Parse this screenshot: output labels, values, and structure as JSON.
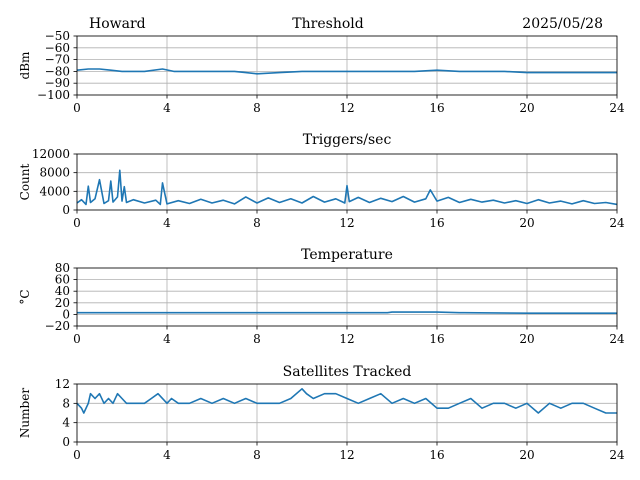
{
  "header": {
    "left": "Howard",
    "right": "2025/05/28"
  },
  "colors": {
    "line": "#1f77b4",
    "grid": "#b0b0b0",
    "axis": "#000000"
  },
  "chart_data": [
    {
      "type": "line",
      "title": "Threshold",
      "xlabel": "",
      "ylabel": "dBm",
      "xlim": [
        0,
        24
      ],
      "ylim": [
        -100,
        -50
      ],
      "grid": true,
      "x_ticks": [
        "0",
        "4",
        "8",
        "12",
        "16",
        "20",
        "24"
      ],
      "y_ticks": [
        "−50",
        "−60",
        "−70",
        "−80",
        "−90",
        "−100"
      ],
      "series": [
        {
          "x": [
            0,
            0.5,
            1,
            1.5,
            2,
            3,
            3.8,
            4.3,
            5,
            6,
            7,
            7.5,
            8,
            9,
            10,
            11,
            12,
            13,
            14,
            15,
            16,
            17,
            18,
            19,
            20,
            21,
            22,
            23,
            24
          ],
          "values": [
            -79,
            -78,
            -78,
            -79,
            -80,
            -80,
            -78,
            -80,
            -80,
            -80,
            -80,
            -81,
            -82,
            -81,
            -80,
            -80,
            -80,
            -80,
            -80,
            -80,
            -79,
            -80,
            -80,
            -80,
            -81,
            -81,
            -81,
            -81,
            -81
          ]
        }
      ]
    },
    {
      "type": "line",
      "title": "Triggers/sec",
      "xlabel": "",
      "ylabel": "Count",
      "xlim": [
        0,
        24
      ],
      "ylim": [
        0,
        12000
      ],
      "grid": true,
      "x_ticks": [
        "0",
        "4",
        "8",
        "12",
        "16",
        "20",
        "24"
      ],
      "y_ticks": [
        "12000",
        "8000",
        "4000",
        "0"
      ],
      "series": [
        {
          "x": [
            0,
            0.2,
            0.4,
            0.5,
            0.6,
            0.8,
            1.0,
            1.2,
            1.4,
            1.5,
            1.6,
            1.8,
            1.9,
            2.0,
            2.1,
            2.2,
            2.5,
            3.0,
            3.5,
            3.7,
            3.8,
            4.0,
            4.5,
            5.0,
            5.5,
            6.0,
            6.5,
            7.0,
            7.5,
            8.0,
            8.5,
            9.0,
            9.5,
            10.0,
            10.5,
            11.0,
            11.5,
            11.9,
            12.0,
            12.1,
            12.5,
            13.0,
            13.5,
            14.0,
            14.5,
            15.0,
            15.5,
            15.7,
            16.0,
            16.5,
            17.0,
            17.5,
            18.0,
            18.5,
            19.0,
            19.5,
            20.0,
            20.5,
            21.0,
            21.5,
            22.0,
            22.5,
            23.0,
            23.5,
            24.0
          ],
          "values": [
            1500,
            2200,
            1200,
            5100,
            1600,
            2400,
            6500,
            1400,
            2000,
            6200,
            1700,
            2800,
            8500,
            1900,
            5000,
            1600,
            2200,
            1500,
            2100,
            1200,
            5800,
            1300,
            2000,
            1400,
            2300,
            1500,
            2100,
            1300,
            2800,
            1500,
            2600,
            1600,
            2400,
            1500,
            2900,
            1700,
            2400,
            1500,
            5200,
            1800,
            2700,
            1600,
            2500,
            1800,
            2900,
            1700,
            2400,
            4300,
            1900,
            2700,
            1600,
            2300,
            1700,
            2100,
            1500,
            2000,
            1400,
            2200,
            1500,
            1900,
            1300,
            2000,
            1400,
            1600,
            1200
          ]
        }
      ]
    },
    {
      "type": "line",
      "title": "Temperature",
      "xlabel": "",
      "ylabel": "°C",
      "xlim": [
        0,
        24
      ],
      "ylim": [
        -20,
        80
      ],
      "grid": true,
      "x_ticks": [
        "0",
        "4",
        "8",
        "12",
        "16",
        "20",
        "24"
      ],
      "y_ticks": [
        "80",
        "60",
        "40",
        "20",
        "0",
        "−20"
      ],
      "series": [
        {
          "x": [
            0,
            4,
            8,
            12,
            13.8,
            14,
            15,
            16,
            17,
            17.2,
            20,
            24
          ],
          "values": [
            3,
            3,
            3,
            3,
            3,
            4,
            4,
            4,
            3,
            3,
            2,
            2
          ]
        }
      ]
    },
    {
      "type": "line",
      "title": "Satellites Tracked",
      "xlabel": "",
      "ylabel": "Number",
      "xlim": [
        0,
        24
      ],
      "ylim": [
        0,
        12
      ],
      "grid": true,
      "x_ticks": [
        "0",
        "4",
        "8",
        "12",
        "16",
        "20",
        "24"
      ],
      "y_ticks": [
        "12",
        "8",
        "4",
        "0"
      ],
      "series": [
        {
          "x": [
            0,
            0.2,
            0.3,
            0.5,
            0.6,
            0.8,
            1.0,
            1.2,
            1.4,
            1.6,
            1.8,
            2.0,
            2.2,
            2.5,
            3.0,
            3.3,
            3.6,
            4.0,
            4.2,
            4.5,
            5.0,
            5.5,
            6.0,
            6.5,
            7.0,
            7.5,
            8.0,
            8.5,
            9.0,
            9.5,
            10.0,
            10.2,
            10.5,
            11.0,
            11.5,
            12.0,
            12.5,
            13.0,
            13.5,
            14.0,
            14.5,
            15.0,
            15.5,
            16.0,
            16.5,
            17.0,
            17.5,
            18.0,
            18.5,
            19.0,
            19.5,
            20.0,
            20.5,
            21.0,
            21.5,
            22.0,
            22.5,
            23.0,
            23.5,
            24.0
          ],
          "values": [
            8,
            7,
            6,
            8,
            10,
            9,
            10,
            8,
            9,
            8,
            10,
            9,
            8,
            8,
            8,
            9,
            10,
            8,
            9,
            8,
            8,
            9,
            8,
            9,
            8,
            9,
            8,
            8,
            8,
            9,
            11,
            10,
            9,
            10,
            10,
            9,
            8,
            9,
            10,
            8,
            9,
            8,
            9,
            7,
            7,
            8,
            9,
            7,
            8,
            8,
            7,
            8,
            6,
            8,
            7,
            8,
            8,
            7,
            6,
            6
          ]
        }
      ]
    }
  ]
}
